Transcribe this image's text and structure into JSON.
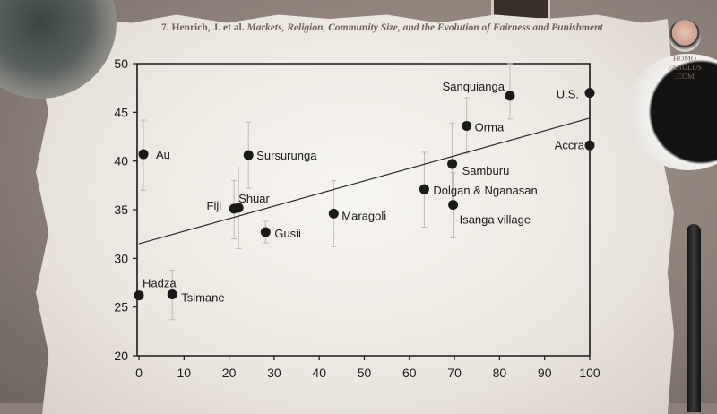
{
  "citation": {
    "prefix": "7. Henrich, J. et al.",
    "title": "Markets, Religion, Community Size, and the Evolution of Fairness and Punishment"
  },
  "watermark": {
    "line1": "HOMO",
    "line2": "FABULUS",
    "line3": ".COM"
  },
  "chart_data": {
    "type": "scatter",
    "title": "",
    "xlabel": "",
    "ylabel": "",
    "xlim": [
      0,
      100
    ],
    "ylim": [
      20,
      50
    ],
    "xticks": [
      "0",
      "10",
      "20",
      "30",
      "40",
      "50",
      "60",
      "70",
      "80",
      "90",
      "100"
    ],
    "yticks": [
      "20",
      "25",
      "30",
      "35",
      "40",
      "45",
      "50"
    ],
    "grid": false,
    "legend": "none",
    "point_color": "#1a1a1a",
    "error_bar_color": "#bdbab5",
    "points": [
      {
        "label": "Au",
        "x": 1,
        "y": 40.7,
        "err": [
          37.0,
          44.2
        ]
      },
      {
        "label": "Sursurunga",
        "x": 24.3,
        "y": 40.6,
        "err": [
          37.2,
          44.0
        ]
      },
      {
        "label": "Fiji",
        "x": 21.1,
        "y": 35.1,
        "err": [
          32.0,
          38.0
        ]
      },
      {
        "label": "Shuar",
        "x": 22.1,
        "y": 35.2,
        "err": [
          31.0,
          39.3
        ]
      },
      {
        "label": "Gusii",
        "x": 28.1,
        "y": 32.7,
        "err": [
          31.6,
          33.8
        ]
      },
      {
        "label": "Maragoli",
        "x": 43.2,
        "y": 34.6,
        "err": [
          31.2,
          38.0
        ]
      },
      {
        "label": "Hadza",
        "x": 0,
        "y": 26.2,
        "err": null
      },
      {
        "label": "Tsimane",
        "x": 7.4,
        "y": 26.3,
        "err": [
          23.7,
          28.8
        ]
      },
      {
        "label": "Sanquianga",
        "x": 82.3,
        "y": 46.7,
        "err": [
          44.3,
          50.0
        ]
      },
      {
        "label": "U.S.",
        "x": 100,
        "y": 47.0,
        "err": null
      },
      {
        "label": "Orma",
        "x": 72.7,
        "y": 43.6,
        "err": [
          40.8,
          46.5
        ]
      },
      {
        "label": "Accra",
        "x": 100,
        "y": 41.6,
        "err": null
      },
      {
        "label": "Samburu",
        "x": 69.5,
        "y": 39.7,
        "err": [
          35.6,
          43.9
        ]
      },
      {
        "label": "Dolgan & Nganasan",
        "x": 63.3,
        "y": 37.1,
        "err": [
          33.2,
          40.9
        ]
      },
      {
        "label": "Isanga village",
        "x": 69.7,
        "y": 35.5,
        "err": [
          32.1,
          38.8
        ]
      }
    ],
    "regression_line": {
      "x": [
        0,
        100
      ],
      "y": [
        31.5,
        44.4
      ]
    }
  }
}
